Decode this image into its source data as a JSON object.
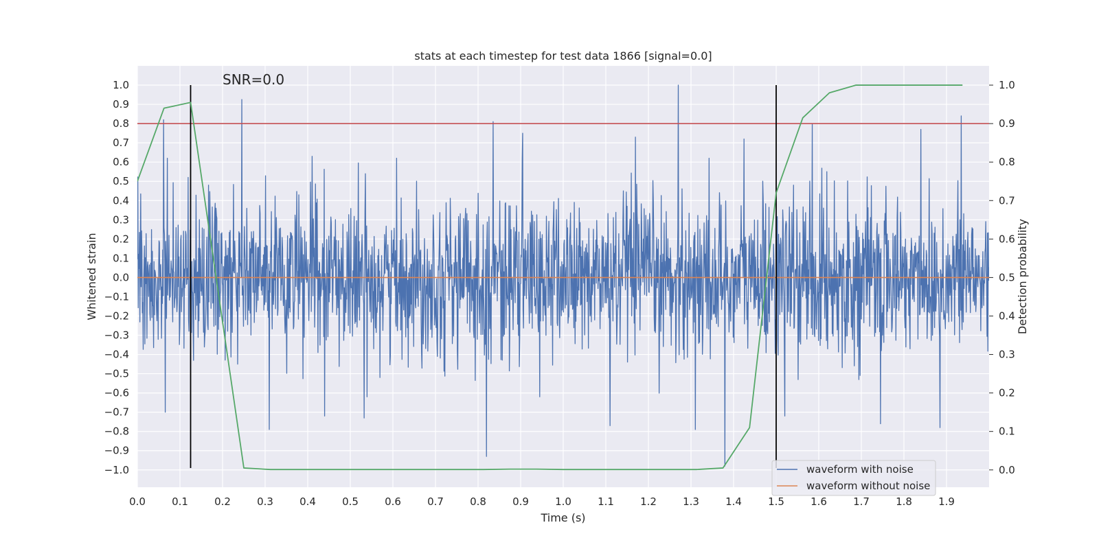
{
  "chart_data": {
    "type": "line",
    "title": "stats at each timestep for test data 1866 [signal=0.0]",
    "xlabel": "Time (s)",
    "ylabel_left": "Whitened strain",
    "ylabel_right": "Detection probability",
    "annotation": "SNR=0.0",
    "xlim": [
      0.0,
      2.0
    ],
    "ylim_left": [
      -1.09,
      1.1
    ],
    "ylim_right": [
      -0.045,
      1.05
    ],
    "xticks": [
      "0.0",
      "0.1",
      "0.2",
      "0.3",
      "0.4",
      "0.5",
      "0.6",
      "0.7",
      "0.8",
      "0.9",
      "1.0",
      "1.1",
      "1.2",
      "1.3",
      "1.4",
      "1.5",
      "1.6",
      "1.7",
      "1.8",
      "1.9"
    ],
    "yticks_left": [
      "1.0",
      "0.9",
      "0.8",
      "0.7",
      "0.6",
      "0.5",
      "0.4",
      "0.3",
      "0.2",
      "0.1",
      "0.0",
      "−0.1",
      "−0.2",
      "−0.3",
      "−0.4",
      "−0.5",
      "−0.6",
      "−0.7",
      "−0.8",
      "−0.9",
      "−1.0"
    ],
    "yticks_right": [
      "1.0",
      "0.9",
      "0.8",
      "0.7",
      "0.6",
      "0.5",
      "0.4",
      "0.3",
      "0.2",
      "0.1",
      "0.0"
    ],
    "grid": true,
    "legend_placement": "lower-right",
    "threshold_line": {
      "y": 0.8,
      "color": "#c44e52"
    },
    "vertical_lines": [
      {
        "x": 0.125,
        "ymin": -0.99,
        "ymax": 1.0,
        "color": "#000000"
      },
      {
        "x": 1.5,
        "ymin": -0.99,
        "ymax": 1.0,
        "color": "#000000"
      }
    ],
    "series": [
      {
        "name": "waveform with noise",
        "color": "#4c72b0",
        "axis": "left",
        "noise_amplitude": 0.3,
        "num_samples": 2048
      },
      {
        "name": "waveform without noise",
        "color": "#dd8452",
        "axis": "left",
        "x": [
          0.0,
          2.0
        ],
        "y": [
          0.0,
          0.0
        ]
      },
      {
        "color": "#55a868",
        "axis": "right",
        "x": [
          0.0,
          0.0625,
          0.125,
          0.25,
          0.3125,
          0.375,
          0.4375,
          0.5,
          0.5625,
          0.625,
          0.6875,
          0.75,
          0.8125,
          0.875,
          0.9375,
          1.0,
          1.0625,
          1.125,
          1.1875,
          1.25,
          1.3125,
          1.375,
          1.4375,
          1.5,
          1.5625,
          1.625,
          1.6875,
          1.75,
          1.8125,
          1.875,
          1.9375
        ],
        "y": [
          0.75,
          0.94,
          0.955,
          0.005,
          0.001,
          0.001,
          0.001,
          0.001,
          0.001,
          0.001,
          0.001,
          0.001,
          0.001,
          0.002,
          0.002,
          0.001,
          0.001,
          0.001,
          0.001,
          0.001,
          0.001,
          0.005,
          0.11,
          0.72,
          0.915,
          0.98,
          1.0,
          1.0,
          1.0,
          1.0,
          1.0
        ]
      }
    ],
    "spikes": [
      {
        "x": 0.062,
        "y": 0.82
      },
      {
        "x": 0.065,
        "y": -0.7
      },
      {
        "x": 0.245,
        "y": 0.925
      },
      {
        "x": 0.31,
        "y": -0.79
      },
      {
        "x": 0.41,
        "y": 0.63
      },
      {
        "x": 0.44,
        "y": -0.72
      },
      {
        "x": 0.532,
        "y": -0.73
      },
      {
        "x": 0.82,
        "y": -0.93
      },
      {
        "x": 0.835,
        "y": 0.81
      },
      {
        "x": 0.905,
        "y": 0.75
      },
      {
        "x": 1.11,
        "y": -0.77
      },
      {
        "x": 1.17,
        "y": 0.73
      },
      {
        "x": 1.27,
        "y": 1.0
      },
      {
        "x": 1.31,
        "y": -0.79
      },
      {
        "x": 1.38,
        "y": -0.98
      },
      {
        "x": 1.425,
        "y": 0.72
      },
      {
        "x": 1.52,
        "y": -0.72
      },
      {
        "x": 1.585,
        "y": 0.8
      },
      {
        "x": 1.745,
        "y": -0.76
      },
      {
        "x": 1.84,
        "y": 0.77
      },
      {
        "x": 1.885,
        "y": -0.78
      },
      {
        "x": 1.935,
        "y": 0.84
      }
    ]
  }
}
